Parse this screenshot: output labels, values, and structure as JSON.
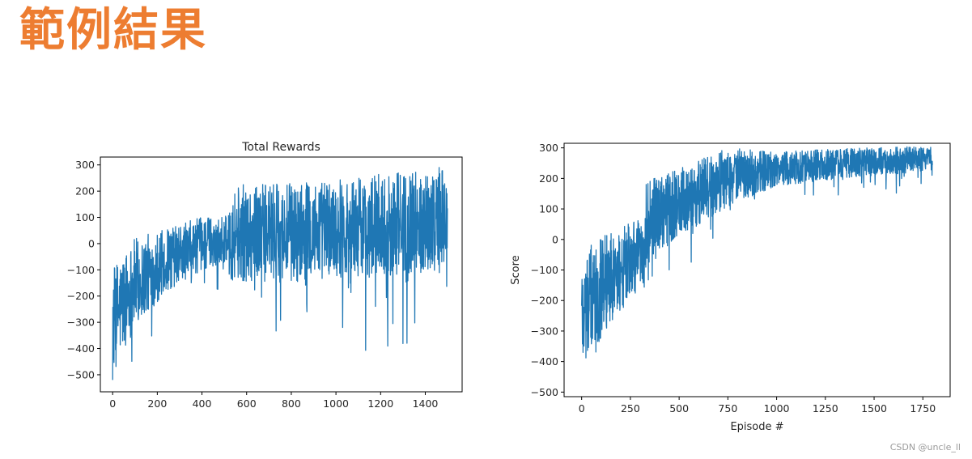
{
  "slide": {
    "title": "範例結果",
    "watermark": "CSDN @uncle_ll",
    "series_color": "#1f77b4",
    "title_color": "#ed7d31"
  },
  "chart_data": [
    {
      "type": "line",
      "title": "Total Rewards",
      "xlabel": "",
      "ylabel": "",
      "xlim": [
        -55,
        1565
      ],
      "ylim": [
        -565,
        330
      ],
      "xticks": [
        0,
        200,
        400,
        600,
        800,
        1000,
        1200,
        1400
      ],
      "yticks": [
        300,
        200,
        100,
        0,
        -100,
        -200,
        -300,
        -400,
        -500
      ],
      "n_points": 1500,
      "series": [
        {
          "color": "#1f77b4",
          "trend": [
            [
              0,
              -290
            ],
            [
              100,
              -150
            ],
            [
              250,
              -60
            ],
            [
              400,
              0
            ],
            [
              520,
              20
            ],
            [
              521,
              40
            ],
            [
              800,
              40
            ],
            [
              1000,
              60
            ],
            [
              1200,
              70
            ],
            [
              1500,
              100
            ]
          ],
          "spread": [
            [
              0,
              130
            ],
            [
              250,
              75
            ],
            [
              520,
              55
            ],
            [
              521,
              115
            ],
            [
              1500,
              125
            ]
          ],
          "min": -520,
          "max": 290
        }
      ]
    },
    {
      "type": "line",
      "title": "",
      "xlabel": "Episode #",
      "ylabel": "Score",
      "xlim": [
        -90,
        1890
      ],
      "ylim": [
        -515,
        315
      ],
      "xticks": [
        0,
        250,
        500,
        750,
        1000,
        1250,
        1500,
        1750
      ],
      "yticks": [
        300,
        200,
        100,
        0,
        -100,
        -200,
        -300,
        -400,
        -500
      ],
      "n_points": 1800,
      "series": [
        {
          "color": "#1f77b4",
          "trend": [
            [
              0,
              -230
            ],
            [
              150,
              -120
            ],
            [
              330,
              -40
            ],
            [
              331,
              60
            ],
            [
              500,
              120
            ],
            [
              750,
              205
            ],
            [
              1000,
              230
            ],
            [
              1250,
              245
            ],
            [
              1500,
              255
            ],
            [
              1800,
              265
            ]
          ],
          "spread": [
            [
              0,
              120
            ],
            [
              330,
              70
            ],
            [
              331,
              80
            ],
            [
              750,
              60
            ],
            [
              1000,
              35
            ],
            [
              1800,
              25
            ]
          ],
          "min": -480,
          "max": 310
        }
      ]
    }
  ]
}
